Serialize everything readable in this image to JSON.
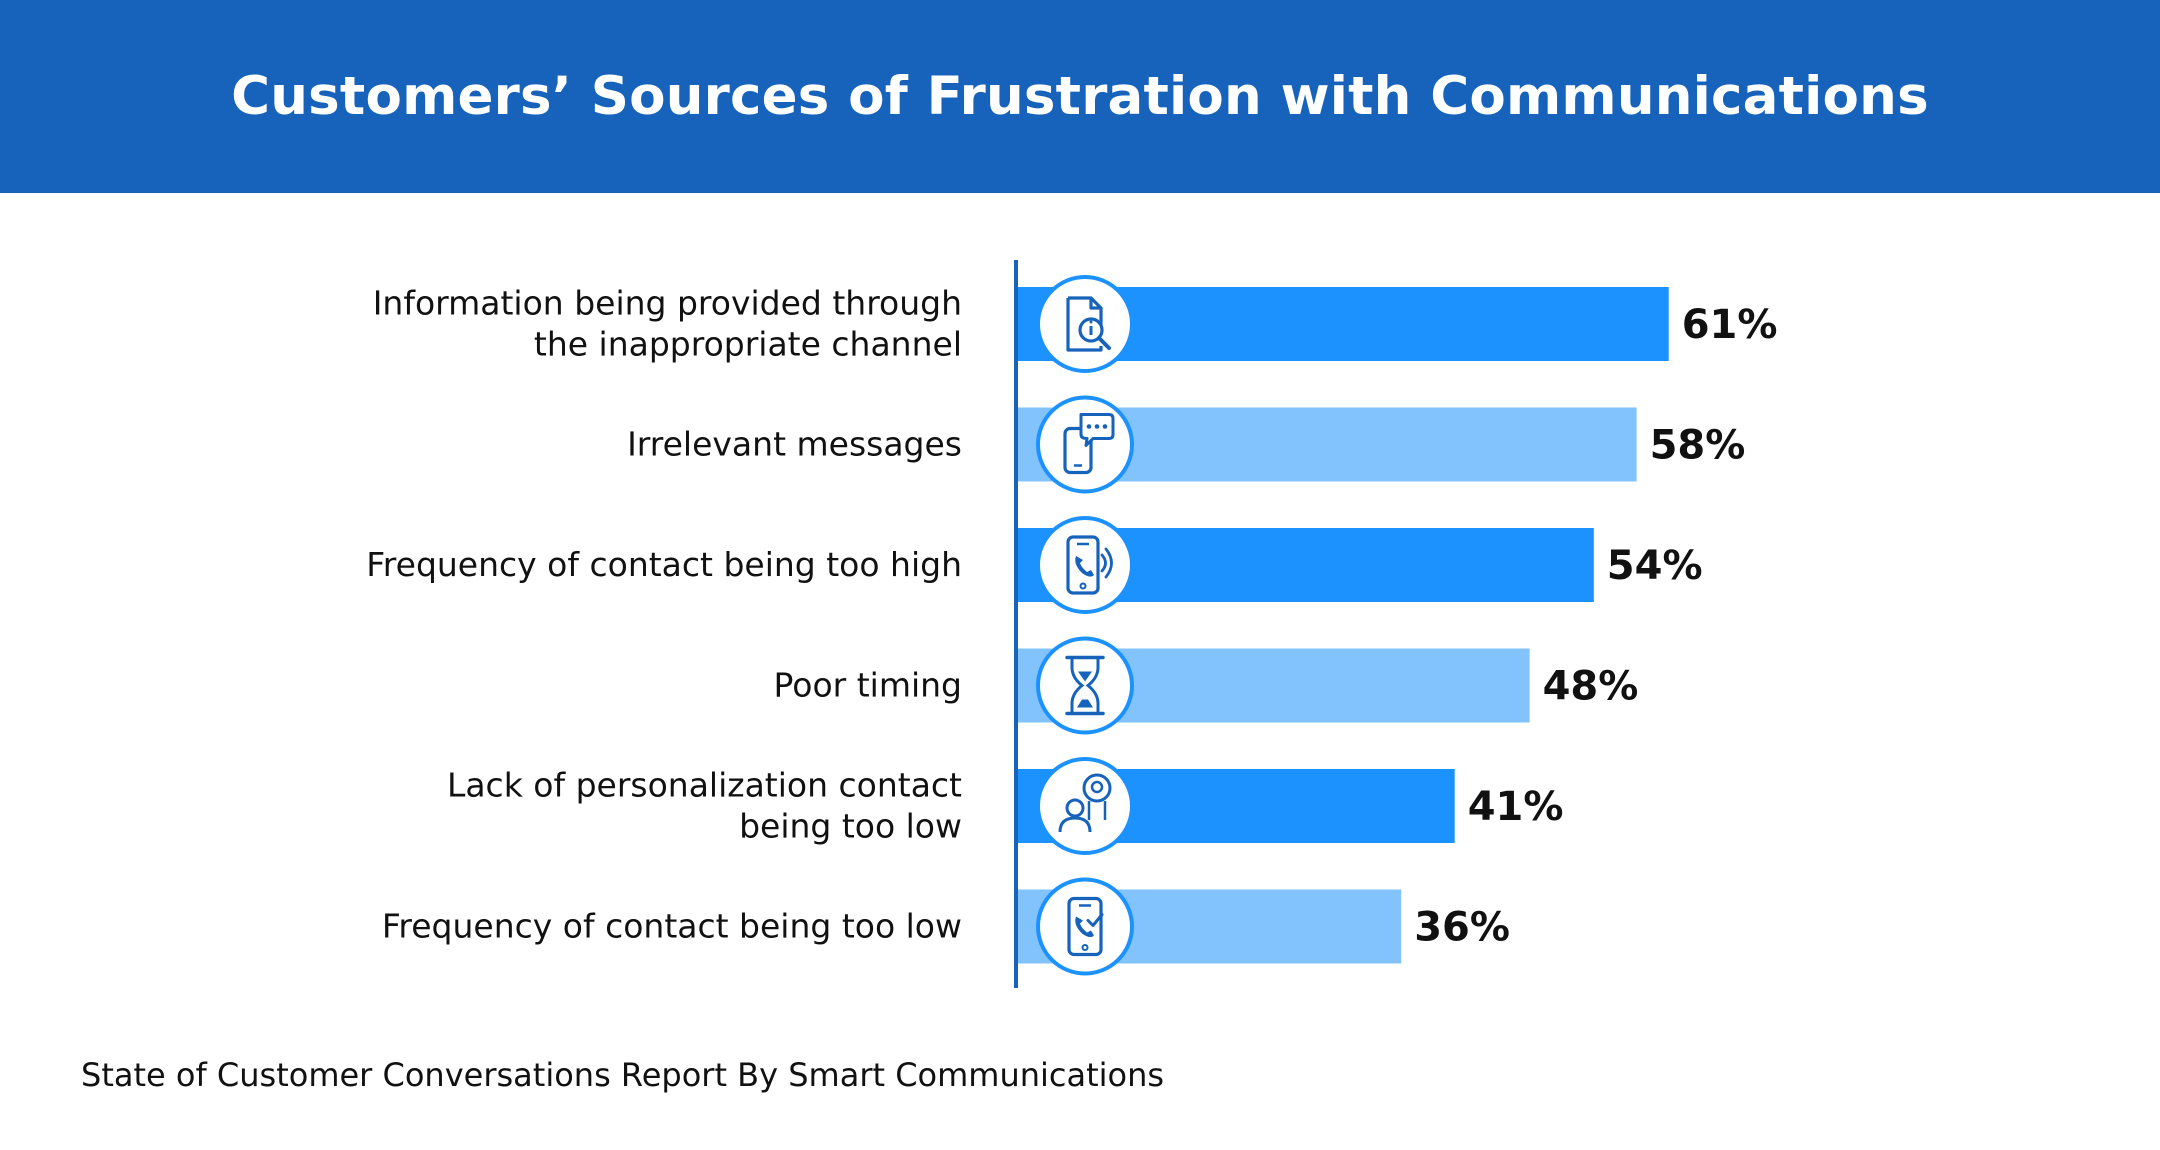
{
  "title": "Customers’ Sources of Frustration with Communications",
  "footer": "State of Customer Conversations Report By Smart Communications",
  "colors": {
    "header_bg": "#1763bb",
    "bar_dark": "#1b92ff",
    "bar_light": "#82c3fd",
    "axis": "#1763bb",
    "icon": "#1763bb",
    "text": "#111111"
  },
  "chart_data": {
    "type": "bar",
    "orientation": "horizontal",
    "categories": [
      [
        "Information being provided through",
        "the inappropriate channel"
      ],
      [
        "Irrelevant messages"
      ],
      [
        "Frequency of contact being too high"
      ],
      [
        "Poor timing"
      ],
      [
        "Lack of personalization contact",
        "being too low"
      ],
      [
        "Frequency of contact being too low"
      ]
    ],
    "values": [
      61,
      58,
      54,
      48,
      41,
      36
    ],
    "value_labels": [
      "61%",
      "58%",
      "54%",
      "48%",
      "41%",
      "36%"
    ],
    "bar_colors": [
      "#1b92ff",
      "#82c3fd",
      "#1b92ff",
      "#82c3fd",
      "#1b92ff",
      "#82c3fd"
    ],
    "icons": [
      "document-search-icon",
      "phone-chat-icon",
      "phone-call-icon",
      "hourglass-icon",
      "support-agent-icon",
      "phone-check-icon"
    ],
    "xlim": [
      0,
      100
    ],
    "grid": false,
    "legend": "none"
  }
}
